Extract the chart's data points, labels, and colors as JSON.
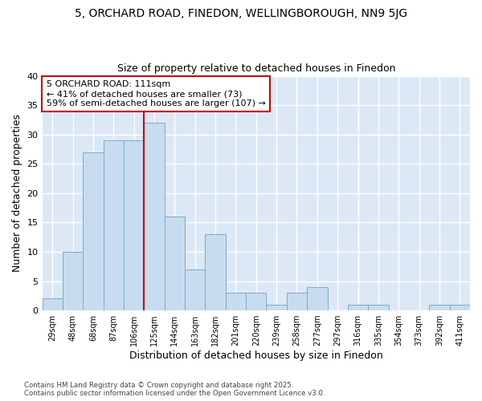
{
  "title_line1": "5, ORCHARD ROAD, FINEDON, WELLINGBOROUGH, NN9 5JG",
  "title_line2": "Size of property relative to detached houses in Finedon",
  "xlabel": "Distribution of detached houses by size in Finedon",
  "ylabel": "Number of detached properties",
  "categories": [
    "29sqm",
    "48sqm",
    "68sqm",
    "87sqm",
    "106sqm",
    "125sqm",
    "144sqm",
    "163sqm",
    "182sqm",
    "201sqm",
    "220sqm",
    "239sqm",
    "258sqm",
    "277sqm",
    "297sqm",
    "316sqm",
    "335sqm",
    "354sqm",
    "373sqm",
    "392sqm",
    "411sqm"
  ],
  "values": [
    2,
    10,
    27,
    29,
    29,
    32,
    16,
    7,
    13,
    3,
    3,
    1,
    3,
    4,
    0,
    1,
    1,
    0,
    0,
    1,
    1
  ],
  "bar_color": "#c8dcf0",
  "bar_edge_color": "#7aabcc",
  "annotation_text": "5 ORCHARD ROAD: 111sqm\n← 41% of detached houses are smaller (73)\n59% of semi-detached houses are larger (107) →",
  "vline_position": 5,
  "vline_color": "#cc0000",
  "annotation_box_edge_color": "#cc0000",
  "plot_bg_color": "#dce8f5",
  "fig_bg_color": "#ffffff",
  "ylim": [
    0,
    40
  ],
  "yticks": [
    0,
    5,
    10,
    15,
    20,
    25,
    30,
    35,
    40
  ],
  "footer": "Contains HM Land Registry data © Crown copyright and database right 2025.\nContains public sector information licensed under the Open Government Licence v3.0.",
  "fig_width": 6.0,
  "fig_height": 5.0
}
